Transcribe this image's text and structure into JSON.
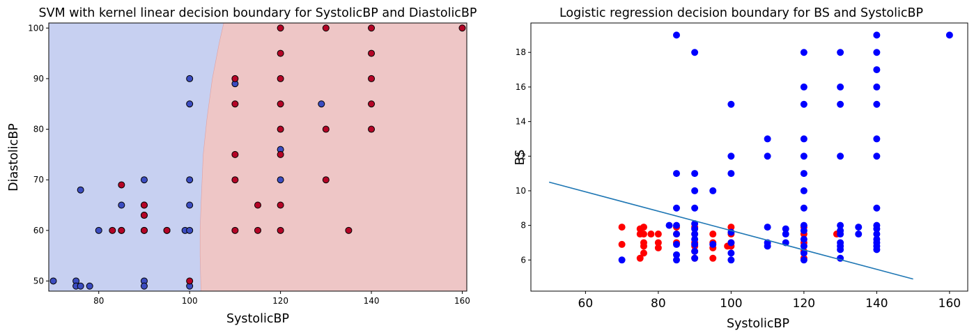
{
  "chart_data": [
    {
      "type": "scatter",
      "title": "SVM with kernel linear decision boundary for SystolicBP and DiastolicBP",
      "xlabel": "SystolicBP",
      "ylabel": "DiastolicBP",
      "xlim": [
        69,
        161
      ],
      "ylim": [
        48,
        101
      ],
      "xticks": [
        80,
        100,
        120,
        140,
        160
      ],
      "yticks": [
        50,
        60,
        70,
        80,
        90,
        100
      ],
      "grid": false,
      "legend": "none",
      "decision_regions": {
        "boundary": [
          [
            102.5,
            48
          ],
          [
            102.3,
            55
          ],
          [
            102.3,
            60
          ],
          [
            102.5,
            65
          ],
          [
            103.0,
            75
          ],
          [
            103.8,
            82
          ],
          [
            105.0,
            90
          ],
          [
            106.5,
            97
          ],
          [
            107.5,
            101
          ]
        ],
        "left_class_color": "#c7d0f1",
        "right_class_color": "#eec6c6"
      },
      "series": [
        {
          "color": "#3b4cc0",
          "points": [
            [
              70,
              50
            ],
            [
              75,
              50
            ],
            [
              75,
              49
            ],
            [
              76,
              49
            ],
            [
              78,
              49
            ],
            [
              76,
              68
            ],
            [
              80,
              60
            ],
            [
              85,
              60
            ],
            [
              85,
              65
            ],
            [
              90,
              70
            ],
            [
              90,
              65
            ],
            [
              90,
              63
            ],
            [
              90,
              60
            ],
            [
              90,
              50
            ],
            [
              90,
              49
            ],
            [
              95,
              60
            ],
            [
              99,
              60
            ],
            [
              100,
              60
            ],
            [
              100,
              90
            ],
            [
              100,
              85
            ],
            [
              100,
              70
            ],
            [
              100,
              65
            ],
            [
              100,
              49
            ],
            [
              110,
              89
            ],
            [
              120,
              76
            ],
            [
              120,
              70
            ],
            [
              129,
              85
            ]
          ]
        },
        {
          "color": "#b40426",
          "points": [
            [
              83,
              60
            ],
            [
              85,
              69
            ],
            [
              85,
              60
            ],
            [
              90,
              65
            ],
            [
              90,
              63
            ],
            [
              90,
              60
            ],
            [
              95,
              60
            ],
            [
              100,
              50
            ],
            [
              110,
              90
            ],
            [
              110,
              85
            ],
            [
              110,
              75
            ],
            [
              110,
              70
            ],
            [
              110,
              60
            ],
            [
              115,
              65
            ],
            [
              115,
              60
            ],
            [
              120,
              100
            ],
            [
              120,
              95
            ],
            [
              120,
              90
            ],
            [
              120,
              85
            ],
            [
              120,
              80
            ],
            [
              120,
              75
            ],
            [
              120,
              65
            ],
            [
              120,
              60
            ],
            [
              130,
              100
            ],
            [
              130,
              80
            ],
            [
              130,
              70
            ],
            [
              135,
              60
            ],
            [
              140,
              100
            ],
            [
              140,
              95
            ],
            [
              140,
              90
            ],
            [
              140,
              85
            ],
            [
              140,
              80
            ],
            [
              160,
              100
            ]
          ]
        }
      ]
    },
    {
      "type": "scatter",
      "title": "Logistic regression decision boundary for BS and SystolicBP",
      "xlabel": "SystolicBP",
      "ylabel": "BS",
      "xlim": [
        45,
        165
      ],
      "ylim": [
        4.2,
        19.7
      ],
      "xticks": [
        60,
        80,
        100,
        120,
        140,
        160
      ],
      "yticks": [
        6,
        8,
        10,
        12,
        14,
        16,
        18
      ],
      "grid": false,
      "legend": "none",
      "decision_line": {
        "color": "#1f77b4",
        "x": [
          50,
          150
        ],
        "y": [
          10.5,
          4.9
        ]
      },
      "series": [
        {
          "color": "#ff0000",
          "points": [
            [
              70,
              7.9
            ],
            [
              70,
              6.9
            ],
            [
              75,
              7.8
            ],
            [
              75,
              7.5
            ],
            [
              75,
              6.1
            ],
            [
              76,
              7.9
            ],
            [
              76,
              7.5
            ],
            [
              76,
              7.0
            ],
            [
              76,
              6.8
            ],
            [
              76,
              6.4
            ],
            [
              78,
              7.5
            ],
            [
              80,
              7.5
            ],
            [
              80,
              7.0
            ],
            [
              80,
              6.7
            ],
            [
              85,
              7.9
            ],
            [
              85,
              7.5
            ],
            [
              85,
              7.0
            ],
            [
              90,
              7.9
            ],
            [
              90,
              7.5
            ],
            [
              90,
              7.0
            ],
            [
              90,
              6.8
            ],
            [
              90,
              6.5
            ],
            [
              90,
              6.1
            ],
            [
              95,
              7.5
            ],
            [
              95,
              7.0
            ],
            [
              95,
              6.7
            ],
            [
              95,
              6.1
            ],
            [
              99,
              6.8
            ],
            [
              100,
              7.9
            ],
            [
              100,
              7.5
            ],
            [
              100,
              7.0
            ],
            [
              100,
              6.8
            ],
            [
              120,
              7.9
            ],
            [
              120,
              7.5
            ],
            [
              120,
              7.0
            ],
            [
              120,
              6.5
            ],
            [
              120,
              6.1
            ],
            [
              129,
              7.5
            ]
          ]
        },
        {
          "color": "#0000ff",
          "points": [
            [
              70,
              6.0
            ],
            [
              83,
              8.0
            ],
            [
              85,
              19
            ],
            [
              85,
              11
            ],
            [
              85,
              9
            ],
            [
              85,
              8.0
            ],
            [
              85,
              7.5
            ],
            [
              85,
              6.9
            ],
            [
              85,
              6.3
            ],
            [
              85,
              6.0
            ],
            [
              90,
              18
            ],
            [
              90,
              11
            ],
            [
              90,
              10
            ],
            [
              90,
              9
            ],
            [
              90,
              8.1
            ],
            [
              90,
              7.8
            ],
            [
              90,
              7.5
            ],
            [
              90,
              7.2
            ],
            [
              90,
              6.9
            ],
            [
              90,
              6.5
            ],
            [
              90,
              6.1
            ],
            [
              95,
              10
            ],
            [
              95,
              6.9
            ],
            [
              100,
              15
            ],
            [
              100,
              12
            ],
            [
              100,
              11
            ],
            [
              100,
              7.6
            ],
            [
              100,
              7.0
            ],
            [
              100,
              6.4
            ],
            [
              100,
              6.0
            ],
            [
              110,
              13
            ],
            [
              110,
              12
            ],
            [
              110,
              7.9
            ],
            [
              110,
              7.0
            ],
            [
              110,
              6.8
            ],
            [
              115,
              7.8
            ],
            [
              115,
              7.5
            ],
            [
              115,
              7.0
            ],
            [
              120,
              18
            ],
            [
              120,
              16
            ],
            [
              120,
              15
            ],
            [
              120,
              13
            ],
            [
              120,
              12
            ],
            [
              120,
              11
            ],
            [
              120,
              10
            ],
            [
              120,
              9
            ],
            [
              120,
              8.0
            ],
            [
              120,
              7.7
            ],
            [
              120,
              7.2
            ],
            [
              120,
              6.8
            ],
            [
              120,
              6.4
            ],
            [
              120,
              6.0
            ],
            [
              130,
              18
            ],
            [
              130,
              16
            ],
            [
              130,
              15
            ],
            [
              130,
              12
            ],
            [
              130,
              8.0
            ],
            [
              130,
              7.7
            ],
            [
              130,
              7.5
            ],
            [
              130,
              7.0
            ],
            [
              130,
              6.8
            ],
            [
              130,
              6.6
            ],
            [
              130,
              6.1
            ],
            [
              135,
              7.9
            ],
            [
              135,
              7.5
            ],
            [
              140,
              19
            ],
            [
              140,
              18
            ],
            [
              140,
              17
            ],
            [
              140,
              16
            ],
            [
              140,
              15
            ],
            [
              140,
              13
            ],
            [
              140,
              12
            ],
            [
              140,
              9
            ],
            [
              140,
              8.0
            ],
            [
              140,
              7.8
            ],
            [
              140,
              7.5
            ],
            [
              140,
              7.2
            ],
            [
              140,
              7.0
            ],
            [
              140,
              6.8
            ],
            [
              140,
              6.6
            ],
            [
              160,
              19
            ]
          ]
        }
      ]
    }
  ]
}
